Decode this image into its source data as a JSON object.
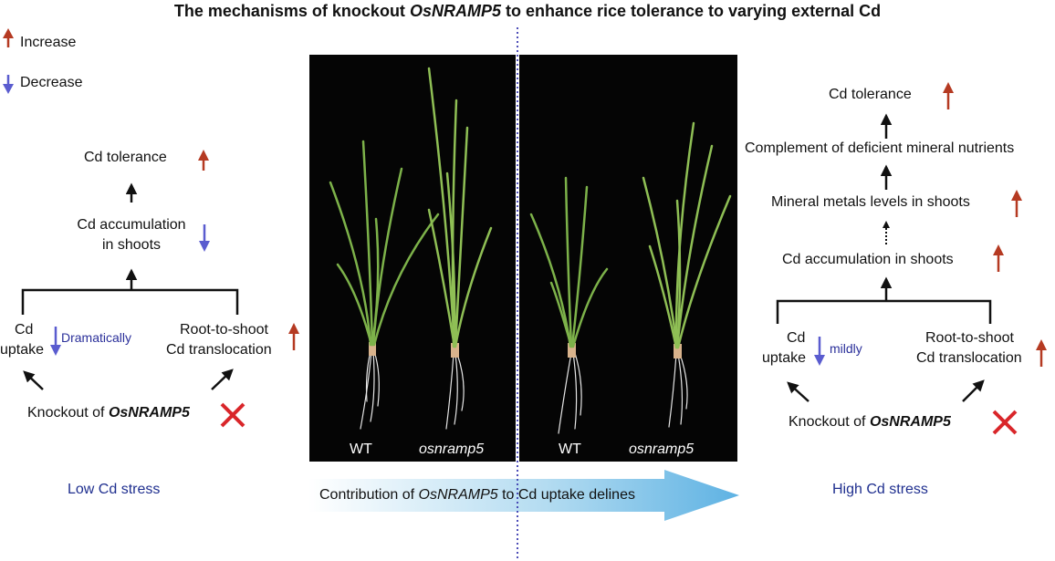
{
  "title_prefix": "The mechanisms of knockout ",
  "title_gene": "OsNRAMP5",
  "title_suffix": " to enhance rice tolerance  to varying external Cd",
  "legend": {
    "increase": "Increase",
    "decrease": "Decrease"
  },
  "left": {
    "tolerance": "Cd tolerance",
    "accum_line1": "Cd accumulation",
    "accum_line2": "in shoots",
    "uptake_line1": "Cd",
    "uptake_line2": "uptake",
    "uptake_modifier": "Dramatically",
    "transloc_line1": "Root-to-shoot",
    "transloc_line2": "Cd translocation",
    "knockout_prefix": "Knockout of ",
    "knockout_gene": "OsNRAMP5",
    "condition": "Low Cd stress"
  },
  "right": {
    "tolerance": "Cd tolerance",
    "complement": "Complement of deficient mineral nutrients",
    "mineral": "Mineral metals levels in shoots",
    "accum": "Cd  accumulation in shoots",
    "uptake_line1": "Cd",
    "uptake_line2": "uptake",
    "uptake_modifier": "mildly",
    "transloc_line1": "Root-to-shoot",
    "transloc_line2": "Cd translocation",
    "knockout_prefix": "Knockout of ",
    "knockout_gene": "OsNRAMP5",
    "condition": "High Cd stress"
  },
  "photos": {
    "left": {
      "wt": "WT",
      "mutant": "osnramp5"
    },
    "right": {
      "wt": "WT",
      "mutant": "osnramp5"
    }
  },
  "bottom_arrow": {
    "prefix": "Contribution of ",
    "gene": "OsNRAMP5",
    "suffix": " to Cd uptake delines"
  },
  "colors": {
    "increase_arrow": "#b53a22",
    "decrease_arrow": "#5a5ccf",
    "cross": "#d9262a",
    "condition_text": "#1f2f8f",
    "divider": "#3b3bb0"
  }
}
